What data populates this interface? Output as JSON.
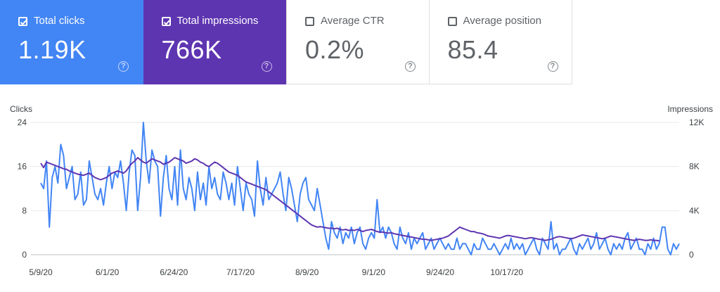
{
  "metrics": [
    {
      "label": "Total clicks",
      "value": "1.19K",
      "checked": true,
      "help_icon": "question-circle-icon"
    },
    {
      "label": "Total impressions",
      "value": "766K",
      "checked": true,
      "help_icon": "question-circle-icon"
    },
    {
      "label": "Average CTR",
      "value": "0.2%",
      "checked": false,
      "help_icon": "question-circle-icon"
    },
    {
      "label": "Average position",
      "value": "85.4",
      "checked": false,
      "help_icon": "question-circle-icon"
    }
  ],
  "colors": {
    "clicks": "#4285f4",
    "impressions": "#5e35b1",
    "grid": "#e8eaed"
  },
  "chart_data": {
    "type": "line",
    "left_axis_label": "Clicks",
    "right_axis_label": "Impressions",
    "y_left_ticks": [
      "0",
      "8",
      "16",
      "24"
    ],
    "y_right_ticks": [
      "0",
      "4K",
      "8K",
      "12K"
    ],
    "ylim_left": [
      0,
      24
    ],
    "ylim_right": [
      0,
      12000
    ],
    "x_tick_labels": [
      "5/9/20",
      "6/1/20",
      "6/24/20",
      "7/17/20",
      "8/9/20",
      "9/1/20",
      "9/24/20",
      "10/17/20"
    ],
    "x_start": "2020-05-09",
    "grid": true,
    "series": [
      {
        "name": "Clicks",
        "axis": "left",
        "values": [
          13,
          12,
          17,
          5,
          14,
          16,
          13,
          20,
          18,
          12,
          14,
          16,
          10,
          11,
          15,
          9,
          10,
          17,
          14,
          11,
          10,
          12,
          9,
          13,
          16,
          12,
          15,
          14,
          17,
          13,
          8,
          15,
          19,
          18,
          8,
          14,
          24,
          17,
          13,
          19,
          17,
          16,
          7,
          14,
          18,
          12,
          10,
          16,
          9,
          19,
          12,
          10,
          14,
          12,
          8,
          15,
          10,
          13,
          9,
          16,
          12,
          14,
          11,
          10,
          15,
          13,
          10,
          13,
          9,
          16,
          12,
          8,
          13,
          11,
          10,
          7,
          17,
          12,
          9,
          14,
          10,
          11,
          12,
          13,
          15,
          11,
          8,
          14,
          12,
          9,
          6,
          11,
          13,
          14,
          10,
          9,
          8,
          12,
          9,
          6,
          3,
          1,
          6,
          4,
          3,
          5,
          2,
          4,
          3,
          5,
          2,
          4,
          5,
          2,
          1,
          3,
          4,
          3,
          10,
          4,
          5,
          3,
          5,
          4,
          2,
          1,
          5,
          3,
          2,
          4,
          1,
          3,
          2,
          3,
          4,
          1,
          2,
          3,
          1,
          2,
          3,
          2,
          1,
          2,
          1,
          1,
          3,
          1,
          2,
          2,
          1,
          0,
          2,
          1,
          1,
          3,
          2,
          1,
          1,
          2,
          1,
          0,
          1,
          2,
          1,
          3,
          1,
          2,
          1,
          2,
          0,
          1,
          2,
          3,
          1,
          0,
          3,
          2,
          1,
          6,
          1,
          2,
          0,
          1,
          1,
          2,
          3,
          1,
          0,
          2,
          1,
          2,
          3,
          1,
          2,
          4,
          1,
          2,
          3,
          1,
          0,
          2,
          1,
          2,
          1,
          3,
          4,
          1,
          2,
          3,
          1,
          1,
          0,
          2,
          1,
          3,
          1,
          2,
          5,
          5,
          1,
          0,
          2,
          1,
          2
        ]
      },
      {
        "name": "Impressions",
        "axis": "right",
        "values": [
          8300,
          7900,
          8400,
          8300,
          8200,
          8100,
          8000,
          7900,
          7800,
          7750,
          7600,
          7500,
          7400,
          7300,
          7250,
          7200,
          7300,
          7400,
          7200,
          7000,
          6900,
          6800,
          6900,
          7000,
          7200,
          7400,
          7500,
          7600,
          7500,
          7400,
          7600,
          8000,
          8300,
          8500,
          8800,
          8600,
          8400,
          8300,
          8500,
          8700,
          8600,
          8500,
          8400,
          8200,
          8300,
          8400,
          8600,
          8800,
          8700,
          8600,
          8500,
          8300,
          8400,
          8500,
          8700,
          8600,
          8400,
          8300,
          8100,
          8000,
          8200,
          8400,
          8300,
          8100,
          7900,
          7700,
          7500,
          7400,
          7300,
          7200,
          7000,
          6800,
          6600,
          6500,
          6400,
          6300,
          6200,
          6100,
          6000,
          5900,
          5700,
          5500,
          5300,
          5100,
          4900,
          4700,
          4500,
          4300,
          4100,
          3900,
          3700,
          3500,
          3300,
          3100,
          2900,
          2700,
          2600,
          2500,
          2550,
          2500,
          2450,
          2400,
          2400,
          2350,
          2400,
          2300,
          2250,
          2300,
          2200,
          2250,
          2200,
          2300,
          2200,
          2100,
          2200,
          2250,
          2300,
          2200,
          2100,
          2050,
          2050,
          2000,
          1950,
          2000,
          1900,
          1850,
          1800,
          1750,
          1700,
          1650,
          1600,
          1550,
          1500,
          1450,
          1400,
          1400,
          1350,
          1300,
          1350,
          1400,
          1450,
          1500,
          1600,
          1700,
          1900,
          2100,
          2300,
          2500,
          2400,
          2300,
          2200,
          2100,
          2100,
          2000,
          1950,
          1900,
          1800,
          1700,
          1650,
          1600,
          1550,
          1500,
          1600,
          1700,
          1750,
          1700,
          1650,
          1600,
          1550,
          1500,
          1450,
          1500,
          1550,
          1500,
          1450,
          1400,
          1350,
          1300,
          1350,
          1400,
          1500,
          1600,
          1650,
          1600,
          1550,
          1500,
          1450,
          1500,
          1600,
          1700,
          1800,
          1750,
          1700,
          1650,
          1600,
          1550,
          1500,
          1450,
          1500,
          1600,
          1700,
          1650,
          1600,
          1550,
          1500,
          1450,
          1400,
          1350,
          1300,
          1350,
          1400,
          1350,
          1300,
          1300,
          1350,
          1300,
          1300,
          1250
        ]
      }
    ]
  }
}
